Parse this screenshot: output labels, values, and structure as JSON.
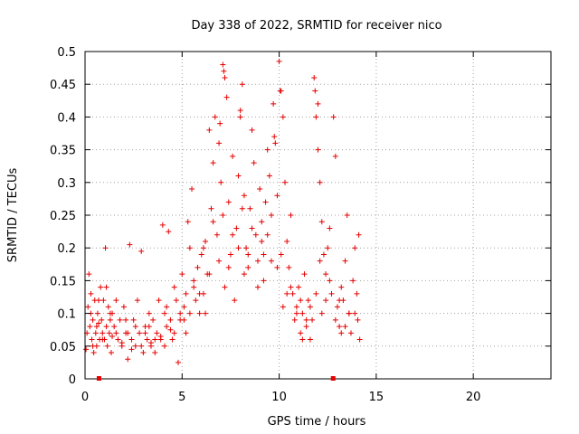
{
  "chart_data": {
    "type": "scatter",
    "title": "Day 338 of 2022, SRMTID for receiver nico",
    "xlabel": "GPS time / hours",
    "ylabel": "SRMTID / TECUs",
    "xlim": [
      0,
      24
    ],
    "ylim": [
      0,
      0.5
    ],
    "x_ticks": [
      0,
      5,
      10,
      15,
      20
    ],
    "x_tick_labels": [
      "0",
      "5",
      "10",
      "15",
      "20"
    ],
    "y_ticks": [
      0,
      0.05,
      0.1,
      0.15,
      0.2,
      0.25,
      0.3,
      0.35,
      0.4,
      0.45,
      0.5
    ],
    "y_tick_labels": [
      "0",
      "0.05",
      "0.1",
      "0.15",
      "0.2",
      "0.25",
      "0.3",
      "0.35",
      "0.4",
      "0.45",
      "0.5"
    ],
    "grid": true,
    "marker": "plus",
    "colors": {
      "points": "#e60000",
      "grid": "#a0a0a0",
      "axes": "#000000"
    },
    "series": [
      {
        "points": [
          [
            0.05,
            0.045
          ],
          [
            0.1,
            0.07
          ],
          [
            0.15,
            0.11
          ],
          [
            0.2,
            0.16
          ],
          [
            0.25,
            0.08
          ],
          [
            0.3,
            0.13
          ],
          [
            0.35,
            0.06
          ],
          [
            0.4,
            0.09
          ],
          [
            0.45,
            0.04
          ],
          [
            0.5,
            0.12
          ],
          [
            0.55,
            0.07
          ],
          [
            0.6,
            0.05
          ],
          [
            0.65,
            0.1
          ],
          [
            0.7,
            0.085
          ],
          [
            0.75,
            0.06
          ],
          [
            0.8,
            0.14
          ],
          [
            0.85,
            0.09
          ],
          [
            0.9,
            0.07
          ],
          [
            0.95,
            0.12
          ],
          [
            1.0,
            0.06
          ],
          [
            1.05,
            0.2
          ],
          [
            1.1,
            0.08
          ],
          [
            1.15,
            0.05
          ],
          [
            1.2,
            0.11
          ],
          [
            1.25,
            0.07
          ],
          [
            1.3,
            0.09
          ],
          [
            1.35,
            0.04
          ],
          [
            1.4,
            0.1
          ],
          [
            1.5,
            0.08
          ],
          [
            1.6,
            0.12
          ],
          [
            1.7,
            0.06
          ],
          [
            1.8,
            0.09
          ],
          [
            1.9,
            0.05
          ],
          [
            2.0,
            0.11
          ],
          [
            2.1,
            0.07
          ],
          [
            2.2,
            0.03
          ],
          [
            2.3,
            0.205
          ],
          [
            2.4,
            0.06
          ],
          [
            2.5,
            0.09
          ],
          [
            2.6,
            0.05
          ],
          [
            2.7,
            0.12
          ],
          [
            2.8,
            0.07
          ],
          [
            2.9,
            0.195
          ],
          [
            3.0,
            0.04
          ],
          [
            3.1,
            0.08
          ],
          [
            3.2,
            0.06
          ],
          [
            3.3,
            0.1
          ],
          [
            3.4,
            0.05
          ],
          [
            3.5,
            0.09
          ],
          [
            3.6,
            0.04
          ],
          [
            3.7,
            0.07
          ],
          [
            3.8,
            0.12
          ],
          [
            3.9,
            0.06
          ],
          [
            4.0,
            0.235
          ],
          [
            4.1,
            0.1
          ],
          [
            4.2,
            0.08
          ],
          [
            4.3,
            0.225
          ],
          [
            4.4,
            0.09
          ],
          [
            4.5,
            0.06
          ],
          [
            4.6,
            0.14
          ],
          [
            4.7,
            0.12
          ],
          [
            4.8,
            0.025
          ],
          [
            4.9,
            0.1
          ],
          [
            5.0,
            0.16
          ],
          [
            5.1,
            0.09
          ],
          [
            5.2,
            0.13
          ],
          [
            5.3,
            0.24
          ],
          [
            5.4,
            0.2
          ],
          [
            5.5,
            0.29
          ],
          [
            5.6,
            0.15
          ],
          [
            5.7,
            0.12
          ],
          [
            5.8,
            0.17
          ],
          [
            5.9,
            0.1
          ],
          [
            6.0,
            0.19
          ],
          [
            6.1,
            0.13
          ],
          [
            6.2,
            0.21
          ],
          [
            6.3,
            0.16
          ],
          [
            6.4,
            0.38
          ],
          [
            6.5,
            0.26
          ],
          [
            6.6,
            0.33
          ],
          [
            6.7,
            0.4
          ],
          [
            6.8,
            0.22
          ],
          [
            6.9,
            0.36
          ],
          [
            7.0,
            0.3
          ],
          [
            7.1,
            0.48
          ],
          [
            7.2,
            0.46
          ],
          [
            7.3,
            0.43
          ],
          [
            7.4,
            0.27
          ],
          [
            7.5,
            0.19
          ],
          [
            7.6,
            0.34
          ],
          [
            7.7,
            0.12
          ],
          [
            7.8,
            0.23
          ],
          [
            7.9,
            0.31
          ],
          [
            8.0,
            0.41
          ],
          [
            8.1,
            0.45
          ],
          [
            8.2,
            0.28
          ],
          [
            8.3,
            0.2
          ],
          [
            8.4,
            0.17
          ],
          [
            8.5,
            0.26
          ],
          [
            8.6,
            0.38
          ],
          [
            8.7,
            0.33
          ],
          [
            8.8,
            0.22
          ],
          [
            8.9,
            0.14
          ],
          [
            9.0,
            0.29
          ],
          [
            9.1,
            0.24
          ],
          [
            9.2,
            0.19
          ],
          [
            9.3,
            0.27
          ],
          [
            9.4,
            0.35
          ],
          [
            9.5,
            0.31
          ],
          [
            9.6,
            0.18
          ],
          [
            9.7,
            0.42
          ],
          [
            9.8,
            0.36
          ],
          [
            9.9,
            0.28
          ],
          [
            10.0,
            0.485
          ],
          [
            10.1,
            0.44
          ],
          [
            10.2,
            0.4
          ],
          [
            10.3,
            0.3
          ],
          [
            10.4,
            0.21
          ],
          [
            10.5,
            0.17
          ],
          [
            10.6,
            0.25
          ],
          [
            10.7,
            0.13
          ],
          [
            10.8,
            0.09
          ],
          [
            10.9,
            0.11
          ],
          [
            11.0,
            0.14
          ],
          [
            11.1,
            0.07
          ],
          [
            11.2,
            0.1
          ],
          [
            11.3,
            0.16
          ],
          [
            11.4,
            0.08
          ],
          [
            11.5,
            0.12
          ],
          [
            11.6,
            0.06
          ],
          [
            11.7,
            0.09
          ],
          [
            11.8,
            0.46
          ],
          [
            11.85,
            0.44
          ],
          [
            11.9,
            0.4
          ],
          [
            12.0,
            0.35
          ],
          [
            12.1,
            0.3
          ],
          [
            12.2,
            0.24
          ],
          [
            12.3,
            0.19
          ],
          [
            12.4,
            0.16
          ],
          [
            12.5,
            0.2
          ],
          [
            12.6,
            0.23
          ],
          [
            12.7,
            0.13
          ],
          [
            12.8,
            0.4
          ],
          [
            12.9,
            0.34
          ],
          [
            13.0,
            0.11
          ],
          [
            13.1,
            0.08
          ],
          [
            13.2,
            0.14
          ],
          [
            13.3,
            0.12
          ],
          [
            13.4,
            0.18
          ],
          [
            13.5,
            0.25
          ],
          [
            13.6,
            0.1
          ],
          [
            13.7,
            0.07
          ],
          [
            13.8,
            0.15
          ],
          [
            13.9,
            0.2
          ],
          [
            14.0,
            0.13
          ],
          [
            14.05,
            0.09
          ],
          [
            14.1,
            0.22
          ],
          [
            14.15,
            0.06
          ],
          [
            0.3,
            0.1
          ],
          [
            0.7,
            0.12
          ],
          [
            1.1,
            0.14
          ],
          [
            1.6,
            0.07
          ],
          [
            2.1,
            0.09
          ],
          [
            2.6,
            0.08
          ],
          [
            3.1,
            0.07
          ],
          [
            3.6,
            0.06
          ],
          [
            4.1,
            0.05
          ],
          [
            4.6,
            0.07
          ],
          [
            5.1,
            0.11
          ],
          [
            5.6,
            0.14
          ],
          [
            6.1,
            0.2
          ],
          [
            6.6,
            0.24
          ],
          [
            7.1,
            0.25
          ],
          [
            7.6,
            0.22
          ],
          [
            8.1,
            0.26
          ],
          [
            8.6,
            0.23
          ],
          [
            9.1,
            0.21
          ],
          [
            9.6,
            0.25
          ],
          [
            10.1,
            0.19
          ],
          [
            10.6,
            0.14
          ],
          [
            11.1,
            0.12
          ],
          [
            11.6,
            0.11
          ],
          [
            12.1,
            0.18
          ],
          [
            12.6,
            0.15
          ],
          [
            13.1,
            0.12
          ],
          [
            13.6,
            0.1
          ],
          [
            0.4,
            0.05
          ],
          [
            0.9,
            0.06
          ],
          [
            1.4,
            0.065
          ],
          [
            1.9,
            0.055
          ],
          [
            2.4,
            0.045
          ],
          [
            2.9,
            0.05
          ],
          [
            3.4,
            0.055
          ],
          [
            3.9,
            0.065
          ],
          [
            4.4,
            0.075
          ],
          [
            4.9,
            0.09
          ],
          [
            5.4,
            0.1
          ],
          [
            5.9,
            0.13
          ],
          [
            6.4,
            0.16
          ],
          [
            6.9,
            0.18
          ],
          [
            7.4,
            0.17
          ],
          [
            7.9,
            0.2
          ],
          [
            8.4,
            0.19
          ],
          [
            8.9,
            0.18
          ],
          [
            9.4,
            0.22
          ],
          [
            9.9,
            0.17
          ],
          [
            10.4,
            0.13
          ],
          [
            10.9,
            0.1
          ],
          [
            11.4,
            0.09
          ],
          [
            11.9,
            0.13
          ],
          [
            12.4,
            0.12
          ],
          [
            12.9,
            0.09
          ],
          [
            13.4,
            0.08
          ],
          [
            13.9,
            0.1
          ],
          [
            0.6,
            0.08
          ],
          [
            1.3,
            0.1
          ],
          [
            2.2,
            0.07
          ],
          [
            3.3,
            0.08
          ],
          [
            4.2,
            0.11
          ],
          [
            5.2,
            0.07
          ],
          [
            6.2,
            0.1
          ],
          [
            7.2,
            0.14
          ],
          [
            8.2,
            0.16
          ],
          [
            9.2,
            0.15
          ],
          [
            10.2,
            0.11
          ],
          [
            11.2,
            0.06
          ],
          [
            12.2,
            0.1
          ],
          [
            13.2,
            0.07
          ],
          [
            7.15,
            0.47
          ],
          [
            8.0,
            0.4
          ],
          [
            9.75,
            0.37
          ],
          [
            10.05,
            0.44
          ],
          [
            6.95,
            0.39
          ],
          [
            12.0,
            0.42
          ]
        ]
      }
    ],
    "bottom_markers_x": [
      0.72,
      12.78
    ]
  }
}
